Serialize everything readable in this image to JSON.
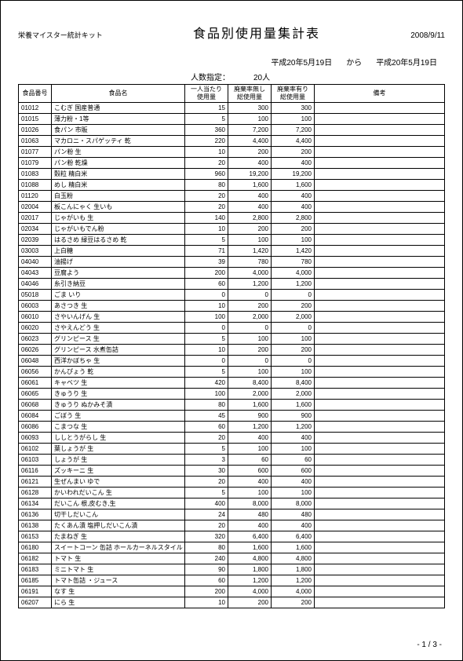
{
  "header": {
    "kit_name": "栄養マイスター統計キット",
    "title": "食品別使用量集計表",
    "date": "2008/9/11"
  },
  "period": {
    "from": "平成20年5月19日",
    "from_label": "から",
    "to": "平成20年5月19日"
  },
  "count": {
    "label": "人数指定：",
    "value": "20人"
  },
  "columns": {
    "code": "食品番号",
    "name": "食品名",
    "v1": "一人当たり\n使用量",
    "v2": "廃棄率無し\n総使用量",
    "v3": "廃棄率有り\n総使用量",
    "note": "備考"
  },
  "rows": [
    [
      "01012",
      "こむぎ 国産普通",
      "15",
      "300",
      "300",
      ""
    ],
    [
      "01015",
      "薄力粉・1等",
      "5",
      "100",
      "100",
      ""
    ],
    [
      "01026",
      "食パン 市販",
      "360",
      "7,200",
      "7,200",
      ""
    ],
    [
      "01063",
      "マカロニ・スパゲッティ 乾",
      "220",
      "4,400",
      "4,400",
      ""
    ],
    [
      "01077",
      "パン粉 生",
      "10",
      "200",
      "200",
      ""
    ],
    [
      "01079",
      "パン粉 乾燥",
      "20",
      "400",
      "400",
      ""
    ],
    [
      "01083",
      "穀粒 精白米",
      "960",
      "19,200",
      "19,200",
      ""
    ],
    [
      "01088",
      "めし 精白米",
      "80",
      "1,600",
      "1,600",
      ""
    ],
    [
      "01120",
      "白玉粉",
      "20",
      "400",
      "400",
      ""
    ],
    [
      "02004",
      "板こんにゃく 生いも",
      "20",
      "400",
      "400",
      ""
    ],
    [
      "02017",
      "じゃがいも 生",
      "140",
      "2,800",
      "2,800",
      ""
    ],
    [
      "02034",
      "じゃがいもでん粉",
      "10",
      "200",
      "200",
      ""
    ],
    [
      "02039",
      "はるさめ 緑豆はるさめ 乾",
      "5",
      "100",
      "100",
      ""
    ],
    [
      "03003",
      "上白糖",
      "71",
      "1,420",
      "1,420",
      ""
    ],
    [
      "04040",
      "油揚げ",
      "39",
      "780",
      "780",
      ""
    ],
    [
      "04043",
      "豆腐よう",
      "200",
      "4,000",
      "4,000",
      ""
    ],
    [
      "04046",
      "糸引き納豆",
      "60",
      "1,200",
      "1,200",
      ""
    ],
    [
      "05018",
      "ごま いり",
      "0",
      "0",
      "0",
      ""
    ],
    [
      "06003",
      "あさつき 生",
      "10",
      "200",
      "200",
      ""
    ],
    [
      "06010",
      "さやいんげん 生",
      "100",
      "2,000",
      "2,000",
      ""
    ],
    [
      "06020",
      "さやえんどう 生",
      "0",
      "0",
      "0",
      ""
    ],
    [
      "06023",
      "グリンピース 生",
      "5",
      "100",
      "100",
      ""
    ],
    [
      "06026",
      "グリンピース 水煮缶詰",
      "10",
      "200",
      "200",
      ""
    ],
    [
      "06048",
      "西洋かぼちゃ 生",
      "0",
      "0",
      "0",
      ""
    ],
    [
      "06056",
      "かんぴょう 乾",
      "5",
      "100",
      "100",
      ""
    ],
    [
      "06061",
      "キャベツ 生",
      "420",
      "8,400",
      "8,400",
      ""
    ],
    [
      "06065",
      "きゅうり 生",
      "100",
      "2,000",
      "2,000",
      ""
    ],
    [
      "06068",
      "きゅうり ぬかみそ漬",
      "80",
      "1,600",
      "1,600",
      ""
    ],
    [
      "06084",
      "ごぼう 生",
      "45",
      "900",
      "900",
      ""
    ],
    [
      "06086",
      "こまつな 生",
      "60",
      "1,200",
      "1,200",
      ""
    ],
    [
      "06093",
      "ししとうがらし 生",
      "20",
      "400",
      "400",
      ""
    ],
    [
      "06102",
      "葉しょうが 生",
      "5",
      "100",
      "100",
      ""
    ],
    [
      "06103",
      "しょうが 生",
      "3",
      "60",
      "60",
      ""
    ],
    [
      "06116",
      "ズッキーニ 生",
      "30",
      "600",
      "600",
      ""
    ],
    [
      "06121",
      "生ぜんまい ゆで",
      "20",
      "400",
      "400",
      ""
    ],
    [
      "06128",
      "かいわれだいこん 生",
      "5",
      "100",
      "100",
      ""
    ],
    [
      "06134",
      "だいこん 根,皮むき,生",
      "400",
      "8,000",
      "8,000",
      ""
    ],
    [
      "06136",
      "切干しだいこん",
      "24",
      "480",
      "480",
      ""
    ],
    [
      "06138",
      "たくあん漬 塩押しだいこん漬",
      "20",
      "400",
      "400",
      ""
    ],
    [
      "06153",
      "たまねぎ 生",
      "320",
      "6,400",
      "6,400",
      ""
    ],
    [
      "06180",
      "スイートコーン 缶詰 ホールカーネルスタイル",
      "80",
      "1,600",
      "1,600",
      ""
    ],
    [
      "06182",
      "トマト 生",
      "240",
      "4,800",
      "4,800",
      ""
    ],
    [
      "06183",
      "ミニトマト 生",
      "90",
      "1,800",
      "1,800",
      ""
    ],
    [
      "06185",
      "トマト缶詰 ・ジュース",
      "60",
      "1,200",
      "1,200",
      ""
    ],
    [
      "06191",
      "なす 生",
      "200",
      "4,000",
      "4,000",
      ""
    ],
    [
      "06207",
      "にら 生",
      "10",
      "200",
      "200",
      ""
    ]
  ],
  "page": "- 1 / 3 -"
}
